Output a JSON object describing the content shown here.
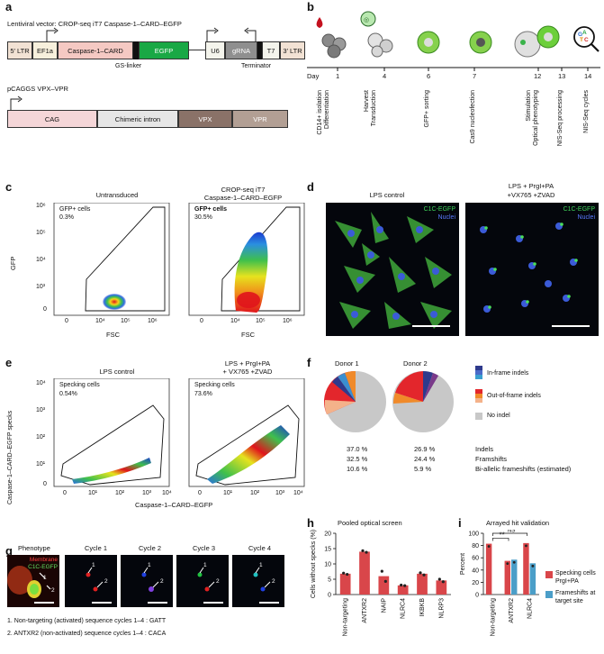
{
  "panel_letters": {
    "a": "a",
    "b": "b",
    "c": "c",
    "d": "d",
    "e": "e",
    "f": "f",
    "g": "g",
    "h": "h",
    "i": "i"
  },
  "panel_a": {
    "vector1_title": "Lentiviral vector: CROP-seq iT7 Caspase-1–CARD–EGFP",
    "elements": [
      "5′ LTR",
      "EF1a",
      "Caspase-1–CARD",
      "EGFP",
      "U6",
      "gRNA",
      "T7",
      "3′ LTR"
    ],
    "linker_label": "GS-linker",
    "terminator_label": "Terminator",
    "vector2_title": "pCAGGS VPX–VPR",
    "elements2": [
      "CAG",
      "Chimeric intron",
      "VPX",
      "VPR"
    ]
  },
  "panel_b": {
    "day_label": "Day",
    "days": [
      "1",
      "4",
      "6",
      "7",
      "12",
      "13",
      "14"
    ],
    "steps": [
      "CD14+ isolation\nDifferentiation",
      "Harvest\nTransduction",
      "GFP+ sorting",
      "Cas9 nucleofection",
      "Stimulation\nOptical phenotyping",
      "NIS-Seq processing",
      "NIS-Seq cycles"
    ]
  },
  "panel_c": {
    "plot1_title": "Untransduced",
    "plot2_title_line1": "CROP-seq iT7",
    "plot2_title_line2": "Caspase-1–CARD–EGFP",
    "gate_label": "GFP+ cells",
    "gate_pct1": "0.3%",
    "gate_pct2": "30.5%",
    "ylabel": "GFP",
    "xlabel": "FSC",
    "yticks": [
      "10⁶",
      "10⁵",
      "10⁴",
      "10³",
      "0"
    ],
    "xticks": [
      "0",
      "10⁴",
      "10⁵",
      "10⁶"
    ]
  },
  "panel_d": {
    "title1": "LPS control",
    "title2_line1": "LPS + PrgI+PA",
    "title2_line2": "+VX765 +ZVAD",
    "legend_gfp": "C1C-EGFP",
    "legend_nuclei": "Nuclei"
  },
  "panel_e": {
    "title1": "LPS control",
    "title2_line1": "LPS + PrgI+PA",
    "title2_line2": "+ VX765 +ZVAD",
    "gate_label": "Specking cells",
    "pct1": "0.54%",
    "pct2": "73.6%",
    "ylabel": "Caspase-1–CARD–EGFP specks",
    "xlabel": "Caspase-1–CARD–EGFP",
    "yticks": [
      "10⁴",
      "10³",
      "10²",
      "10¹",
      "0"
    ],
    "xticks": [
      "0",
      "10¹",
      "10²",
      "10³",
      "10⁴"
    ]
  },
  "panel_f": {
    "donor1": "Donor 1",
    "donor2": "Donor 2",
    "legend": [
      "In-frame indels",
      "Out-of-frame indels",
      "No indel"
    ],
    "legend_colors": [
      "#2e3a8c",
      "#e3262c",
      "#c8c8c8"
    ],
    "row_labels": [
      "Indels",
      "Framshifts",
      "Bi-allelic frameshifts (estimated)"
    ],
    "donor1_values": [
      "37.0 %",
      "32.5 %",
      "10.6 %"
    ],
    "donor2_values": [
      "26.9 %",
      "24.4 %",
      "5.9 %"
    ]
  },
  "panel_g": {
    "phenotype_label": "Phenotype",
    "membrane_label": "Membrane",
    "gfp_label": "C1C-EGFP",
    "cycles": [
      "Cycle 1",
      "Cycle 2",
      "Cycle 3",
      "Cycle 4"
    ],
    "arrow1": "1",
    "arrow2": "2",
    "footnote1": "1. Non-targeting (activated) sequence cycles 1–4 : GATT",
    "footnote2": "2. ANTXR2 (non-activated) sequence cycles 1–4 : CACA"
  },
  "chart_data": [
    {
      "type": "bar",
      "title": "Pooled optical screen",
      "ylabel": "Cells without specks (%)",
      "categories": [
        "Non-targeting",
        "ANTXR2",
        "NAIP",
        "NLRC4",
        "IKBKB",
        "NLRP3"
      ],
      "values": [
        6.8,
        14.0,
        6.0,
        3.0,
        6.8,
        4.6
      ],
      "points": [
        [
          7.0,
          6.6
        ],
        [
          14.3,
          13.8
        ],
        [
          7.6,
          4.3
        ],
        [
          3.1,
          2.9
        ],
        [
          7.1,
          6.4
        ],
        [
          5.0,
          4.2
        ]
      ],
      "ylim": [
        0,
        20
      ],
      "yticks": [
        "20",
        "15",
        "10",
        "5",
        "0"
      ],
      "color": "#d9464a"
    },
    {
      "type": "bar",
      "title": "Arrayed hit validation",
      "ylabel": "Percent",
      "categories": [
        "Non-targeting",
        "ANTXR2",
        "NLRC4"
      ],
      "series": [
        {
          "name": "Specking cells PrgI+PA",
          "values": [
            83,
            55,
            84
          ]
        },
        {
          "name": "Frameshifts at target site",
          "values": [
            null,
            57,
            51
          ]
        }
      ],
      "ylim": [
        0,
        100
      ],
      "yticks": [
        "100",
        "80",
        "60",
        "40",
        "20",
        "0"
      ],
      "colors": [
        "#d9464a",
        "#4b9ec8"
      ],
      "legend_line1": "Specking cells",
      "legend_line1b": "PrgI+PA",
      "legend_line2": "Frameshifts at",
      "legend_line2b": "target site",
      "sig1": "**",
      "sig2": "NS"
    }
  ]
}
